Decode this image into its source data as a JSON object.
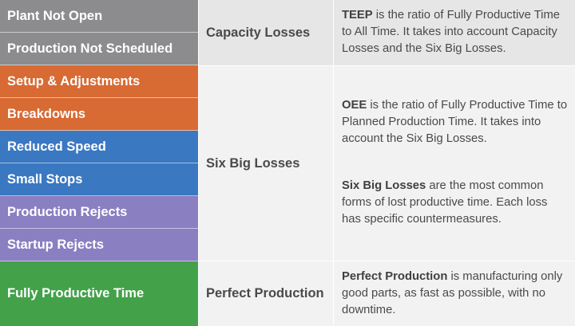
{
  "categories": [
    {
      "label": "Plant Not Open",
      "color": "#8c8c8e"
    },
    {
      "label": "Production Not Scheduled",
      "color": "#8c8c8e"
    },
    {
      "label": "Setup & Adjustments",
      "color": "#d86a34"
    },
    {
      "label": "Breakdowns",
      "color": "#d86a34"
    },
    {
      "label": "Reduced Speed",
      "color": "#3a78c2"
    },
    {
      "label": "Small Stops",
      "color": "#3a78c2"
    },
    {
      "label": "Production Rejects",
      "color": "#8a7fc1"
    },
    {
      "label": "Startup Rejects",
      "color": "#8a7fc1"
    },
    {
      "label": "Fully Productive Time",
      "color": "#43a14a"
    }
  ],
  "groups": {
    "capacity": "Capacity Losses",
    "six_big": "Six Big Losses",
    "perfect": "Perfect Production"
  },
  "descriptions": {
    "teep_term": "TEEP",
    "teep_text": " is the ratio of Fully Productive Time to All Time. It takes into account Capacity Losses and the Six Big Losses.",
    "oee_term": "OEE",
    "oee_text": " is the ratio of Fully Productive Time to Planned Production Time. It takes into account the Six Big Losses.",
    "sbl_term": "Six Big Losses",
    "sbl_text": " are the most common forms of lost productive time. Each loss has specific countermeasures.",
    "pp_term": "Perfect Production",
    "pp_text": " is manufacturing only good parts, as fast as possible, with no downtime."
  }
}
